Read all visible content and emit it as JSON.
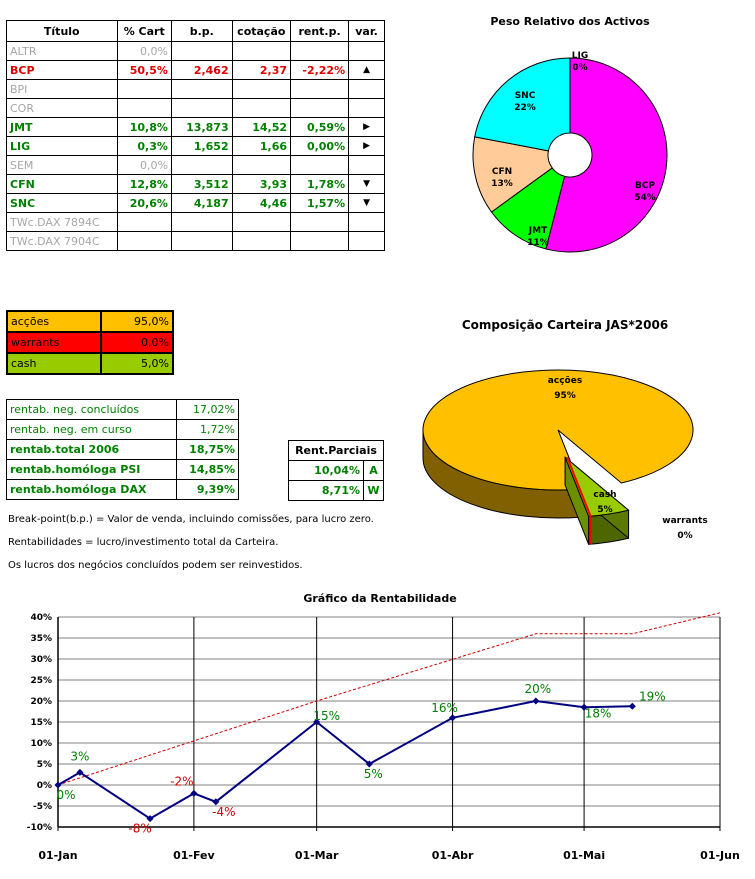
{
  "holdings": {
    "headers": [
      "Título",
      "% Cart",
      "b.p.",
      "cotação",
      "rent.p.",
      "var."
    ],
    "rows": [
      {
        "titulo": "ALTR",
        "cart": "0,0%",
        "bp": "",
        "cot": "",
        "rent": "",
        "var": "",
        "style": "gray"
      },
      {
        "titulo": "BCP",
        "cart": "50,5%",
        "bp": "2,462",
        "cot": "2,37",
        "rent": "-2,22%",
        "var": "▲",
        "style": "red"
      },
      {
        "titulo": "BPI",
        "cart": "",
        "bp": "",
        "cot": "",
        "rent": "",
        "var": "",
        "style": "gray"
      },
      {
        "titulo": "COR",
        "cart": "",
        "bp": "",
        "cot": "",
        "rent": "",
        "var": "",
        "style": "gray"
      },
      {
        "titulo": "JMT",
        "cart": "10,8%",
        "bp": "13,873",
        "cot": "14,52",
        "rent": "0,59%",
        "var": "▶",
        "style": "green"
      },
      {
        "titulo": "LIG",
        "cart": "0,3%",
        "bp": "1,652",
        "cot": "1,66",
        "rent": "0,00%",
        "var": "▶",
        "style": "green"
      },
      {
        "titulo": "SEM",
        "cart": "0,0%",
        "bp": "",
        "cot": "",
        "rent": "",
        "var": "",
        "style": "gray"
      },
      {
        "titulo": "CFN",
        "cart": "12,8%",
        "bp": "3,512",
        "cot": "3,93",
        "rent": "1,78%",
        "var": "▼",
        "style": "green"
      },
      {
        "titulo": "SNC",
        "cart": "20,6%",
        "bp": "4,187",
        "cot": "4,46",
        "rent": "1,57%",
        "var": "▼",
        "style": "green"
      },
      {
        "titulo": "TWc.DAX 7894C",
        "cart": "",
        "bp": "",
        "cot": "",
        "rent": "",
        "var": "",
        "style": "gray"
      },
      {
        "titulo": "TWc.DAX 7904C",
        "cart": "",
        "bp": "",
        "cot": "",
        "rent": "",
        "var": "",
        "style": "gray"
      }
    ]
  },
  "allocation": [
    {
      "label": "acções",
      "value": "95,0%",
      "color": "#ffc000"
    },
    {
      "label": "warrants",
      "value": "0,0%",
      "color": "#ff0000"
    },
    {
      "label": "cash",
      "value": "5,0%",
      "color": "#99cc00"
    }
  ],
  "rentab": [
    {
      "label": "rentab. neg. concluídos",
      "value": "17,02%",
      "bold": false
    },
    {
      "label": "rentab. neg. em curso",
      "value": "1,72%",
      "bold": false
    },
    {
      "label": "rentab.total 2006",
      "value": "18,75%",
      "bold": true
    },
    {
      "label": "rentab.homóloga PSI",
      "value": "14,85%",
      "bold": true
    },
    {
      "label": "rentab.homóloga DAX",
      "value": "9,39%",
      "bold": true
    }
  ],
  "rent_parciais": {
    "header": "Rent.Parciais",
    "rows": [
      {
        "value": "10,04%",
        "tag": "A"
      },
      {
        "value": "8,71%",
        "tag": "W"
      }
    ]
  },
  "notes": [
    "Break-point(b.p.) = Valor de venda, incluindo comissões, para lucro zero.",
    "Rentabilidades = lucro/investimento total da Carteira.",
    "Os lucros dos negócios concluídos podem ser reinvestidos."
  ],
  "chart_data": [
    {
      "type": "pie",
      "title": "Peso Relativo dos Activos",
      "labels": [
        "BCP",
        "JMT",
        "CFN",
        "SNC",
        "LIG"
      ],
      "values": [
        54,
        11,
        13,
        22,
        0
      ],
      "value_labels": [
        "54%",
        "11%",
        "13%",
        "22%",
        "0%"
      ],
      "colors": [
        "#ff00ff",
        "#00ff00",
        "#ffcc99",
        "#00ffff",
        "#ffffff"
      ],
      "donut": true
    },
    {
      "type": "pie",
      "title": "Composição Carteira JAS*2006",
      "labels": [
        "acções",
        "cash",
        "warrants"
      ],
      "values": [
        95,
        5,
        0
      ],
      "value_labels": [
        "95%",
        "5%",
        "0%"
      ],
      "colors": [
        "#ffc000",
        "#99cc00",
        "#ff0000"
      ],
      "style": "3d-exploded"
    },
    {
      "type": "line",
      "title": "Gráfico da Rentabilidade",
      "x_ticks": [
        "01-Jan",
        "01-Fev",
        "01-Mar",
        "01-Abr",
        "01-Mai",
        "01-Jun"
      ],
      "ylim": [
        -10,
        40
      ],
      "y_ticks": [
        "-10%",
        "-5%",
        "0%",
        "5%",
        "10%",
        "15%",
        "20%",
        "25%",
        "30%",
        "35%",
        "40%"
      ],
      "grid": true,
      "series": [
        {
          "name": "",
          "color": "#000080",
          "style": "solid-markers",
          "points": [
            {
              "x": "2006-01-01",
              "y": 0,
              "label": "0%"
            },
            {
              "x": "2006-01-06",
              "y": 3,
              "label": "3%"
            },
            {
              "x": "2006-01-22",
              "y": -8,
              "label": "-8%"
            },
            {
              "x": "2006-02-01",
              "y": -2,
              "label": "-2%"
            },
            {
              "x": "2006-02-06",
              "y": -4,
              "label": "-4%"
            },
            {
              "x": "2006-03-01",
              "y": 15,
              "label": "15%"
            },
            {
              "x": "2006-03-13",
              "y": 5,
              "label": "5%"
            },
            {
              "x": "2006-04-01",
              "y": 16,
              "label": "16%"
            },
            {
              "x": "2006-04-20",
              "y": 20,
              "label": "20%"
            },
            {
              "x": "2006-05-01",
              "y": 18.5,
              "label": "18%"
            },
            {
              "x": "2006-05-12",
              "y": 18.75,
              "label": "19%"
            }
          ]
        },
        {
          "name": "",
          "color": "#cc0000",
          "style": "dashed",
          "points": [
            {
              "x": "2006-01-01",
              "y": 0
            },
            {
              "x": "2006-03-01",
              "y": 20
            },
            {
              "x": "2006-04-20",
              "y": 36
            },
            {
              "x": "2006-05-12",
              "y": 36
            },
            {
              "x": "2006-06-01",
              "y": 41
            }
          ]
        }
      ]
    }
  ]
}
